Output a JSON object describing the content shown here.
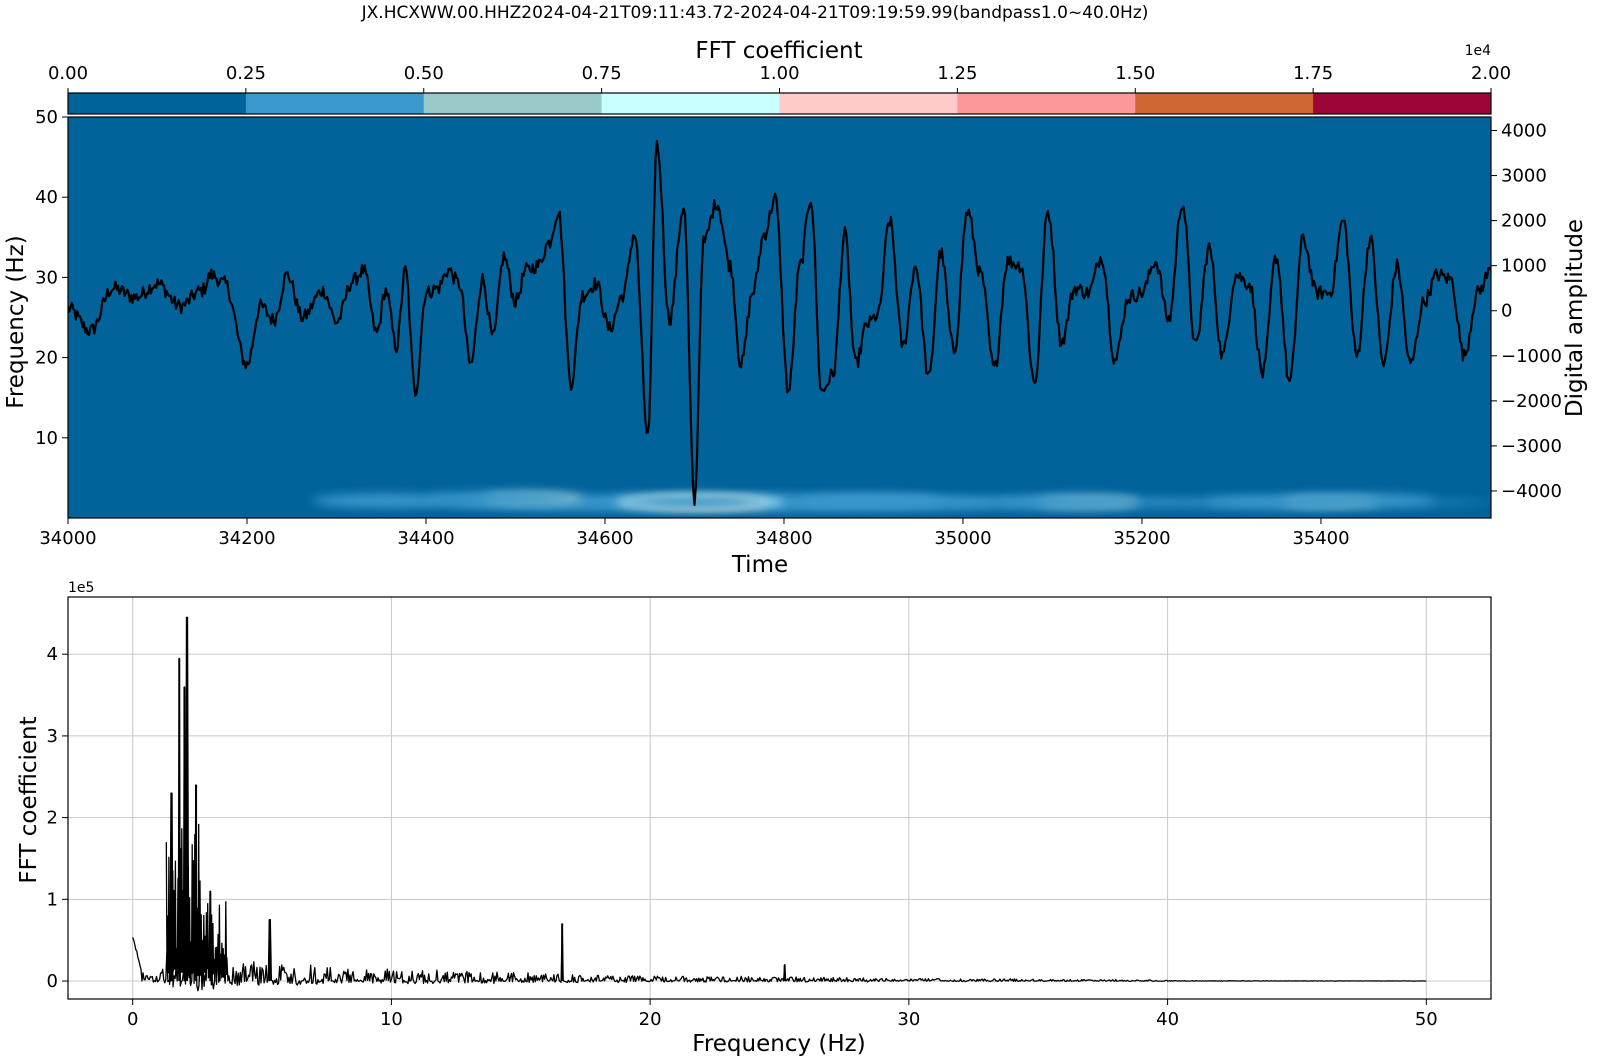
{
  "figure": {
    "title": "JX.HCXWW.00.HHZ2024-04-21T09:11:43.72-2024-04-21T09:19:59.99(bandpass1.0~40.0Hz)"
  },
  "colorbar": {
    "label": "FFT coefficient",
    "exponent": "1e4",
    "ticks": [
      "0.00",
      "0.25",
      "0.50",
      "0.75",
      "1.00",
      "1.25",
      "1.50",
      "1.75",
      "2.00"
    ],
    "tick_values": [
      0,
      0.25,
      0.5,
      0.75,
      1.0,
      1.25,
      1.5,
      1.75,
      2.0
    ],
    "colors": [
      "#02629a",
      "#3a98cc",
      "#9ac9c9",
      "#c8ffff",
      "#ffcaca",
      "#fc9897",
      "#cf6734",
      "#9c0538"
    ],
    "background_color": "#02629a",
    "trace_color": "#000000"
  },
  "chart_data": [
    {
      "type": "heatmap",
      "title": "",
      "xlabel": "Time",
      "ylabel": "Frequency (Hz)",
      "y2label": "Digital amplitude",
      "xlim": [
        34000,
        35590
      ],
      "ylim": [
        0,
        50
      ],
      "y2lim": [
        -4600,
        4300
      ],
      "x_ticks": [
        34000,
        34200,
        34400,
        34600,
        34800,
        35000,
        35200,
        35400
      ],
      "y_ticks": [
        10,
        20,
        30,
        40,
        50
      ],
      "y2_ticks": [
        4000,
        3000,
        2000,
        1000,
        0,
        -1000,
        -2000,
        -3000,
        -4000
      ],
      "y2_tick_labels": [
        "4000",
        "3000",
        "2000",
        "1000",
        "0",
        "−1000",
        "−2000",
        "−3000",
        "−4000"
      ],
      "energy_blobs": [
        {
          "t": 34710,
          "f": 1.8,
          "level": 6
        },
        {
          "t": 34715,
          "f": 1.9,
          "level": 5
        },
        {
          "t": 34700,
          "f": 1.9,
          "level": 4
        },
        {
          "t": 34705,
          "f": 2.0,
          "level": 3
        },
        {
          "t": 34700,
          "f": 2.0,
          "level": 2
        },
        {
          "t": 34520,
          "f": 2.5,
          "level": 2
        },
        {
          "t": 35410,
          "f": 2.0,
          "level": 2
        },
        {
          "t": 35140,
          "f": 2.0,
          "level": 2
        },
        {
          "t": 35120,
          "f": 2.0,
          "level": 1
        },
        {
          "t": 34700,
          "f": 2.0,
          "level": 1
        },
        {
          "t": 34480,
          "f": 2.5,
          "level": 1
        },
        {
          "t": 34350,
          "f": 2.2,
          "level": 1
        },
        {
          "t": 34900,
          "f": 2.2,
          "level": 1
        },
        {
          "t": 35350,
          "f": 2.0,
          "level": 1
        },
        {
          "t": 35450,
          "f": 2.2,
          "level": 1
        }
      ],
      "waveform": {
        "t": [
          34000,
          34025,
          34050,
          34075,
          34100,
          34125,
          34150,
          34160,
          34175,
          34200,
          34215,
          34230,
          34245,
          34262,
          34285,
          34300,
          34318,
          34330,
          34345,
          34355,
          34367,
          34377,
          34388,
          34400,
          34413,
          34425,
          34437,
          34450,
          34463,
          34475,
          34487,
          34500,
          34512,
          34525,
          34537,
          34548,
          34562,
          34575,
          34590,
          34605,
          34620,
          34633,
          34648,
          34658,
          34672,
          34688,
          34700,
          34710,
          34725,
          34740,
          34752,
          34765,
          34778,
          34790,
          34805,
          34818,
          34830,
          34842,
          34855,
          34868,
          34880,
          34893,
          34905,
          34918,
          34933,
          34947,
          34962,
          34975,
          34990,
          35005,
          35020,
          35035,
          35050,
          35065,
          35080,
          35095,
          35110,
          35125,
          35140,
          35155,
          35170,
          35185,
          35200,
          35215,
          35230,
          35245,
          35260,
          35275,
          35290,
          35305,
          35320,
          35335,
          35350,
          35365,
          35380,
          35395,
          35410,
          35425,
          35440,
          35455,
          35470,
          35485,
          35500,
          35515,
          35530,
          35545,
          35560,
          35575,
          35590
        ],
        "amplitude": [
          50,
          -450,
          500,
          300,
          600,
          100,
          450,
          800,
          600,
          -1200,
          100,
          -200,
          800,
          -150,
          450,
          -250,
          650,
          900,
          -500,
          450,
          -800,
          900,
          -1800,
          400,
          500,
          900,
          600,
          -1200,
          700,
          -600,
          1200,
          200,
          900,
          1000,
          1500,
          2200,
          -1600,
          350,
          600,
          -400,
          350,
          1700,
          -2800,
          3700,
          -200,
          2300,
          -4250,
          1500,
          2400,
          1000,
          -1200,
          400,
          1700,
          2500,
          -1800,
          1000,
          2500,
          -1800,
          -1400,
          1700,
          -1200,
          -300,
          -100,
          2000,
          -800,
          1000,
          -1500,
          1300,
          -900,
          2200,
          800,
          -1300,
          1100,
          1000,
          -1600,
          2200,
          -700,
          500,
          400,
          1200,
          -1100,
          300,
          400,
          1100,
          -200,
          2400,
          -800,
          1400,
          -1000,
          800,
          600,
          -1400,
          1200,
          -1600,
          1600,
          400,
          400,
          2000,
          -1000,
          1600,
          -1200,
          1000,
          -1200,
          200,
          800,
          700,
          -1000,
          400,
          900
        ]
      }
    },
    {
      "type": "line",
      "title": "",
      "xlabel": "Frequency (Hz)",
      "ylabel": "FFT coefficient",
      "y_exponent": "1e5",
      "xlim": [
        -2.5,
        52.5
      ],
      "ylim": [
        -0.22,
        4.7
      ],
      "x_ticks": [
        0,
        10,
        20,
        30,
        40,
        50
      ],
      "y_ticks": [
        0,
        1,
        2,
        3,
        4
      ],
      "grid": true,
      "peaks": [
        {
          "x": 1.8,
          "y": 3.95
        },
        {
          "x": 2.0,
          "y": 3.6
        },
        {
          "x": 2.1,
          "y": 4.45
        },
        {
          "x": 1.5,
          "y": 2.3
        },
        {
          "x": 2.45,
          "y": 2.4
        },
        {
          "x": 3.0,
          "y": 1.1
        },
        {
          "x": 5.3,
          "y": 0.75
        },
        {
          "x": 16.6,
          "y": 0.7
        },
        {
          "x": 25.2,
          "y": 0.2
        }
      ],
      "envelope": {
        "x": [
          0,
          0.3,
          0.6,
          1.0,
          1.3,
          2.0,
          3.0,
          4.0,
          6.0,
          8.0,
          10.0,
          12.0,
          15.0,
          18.0,
          20.0,
          25.0,
          30.0,
          35.0,
          40.0,
          45.0,
          50.0
        ],
        "y": [
          0.55,
          0.2,
          0.1,
          0.15,
          0.6,
          0.9,
          0.7,
          0.4,
          0.32,
          0.28,
          0.22,
          0.2,
          0.16,
          0.12,
          0.1,
          0.08,
          0.05,
          0.04,
          0.02,
          0.01,
          0.005
        ]
      }
    }
  ]
}
